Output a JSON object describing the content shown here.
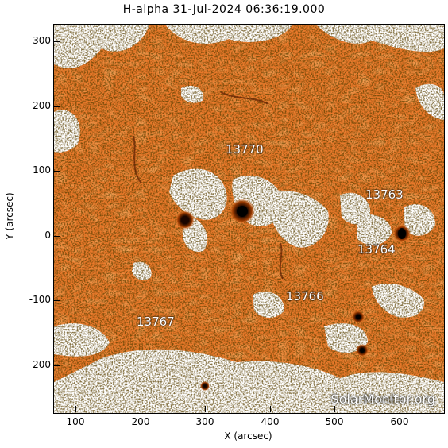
{
  "title": "H-alpha 31-Jul-2024 06:36:19.000",
  "axes": {
    "xlabel": "X (arcsec)",
    "ylabel": "Y (arcsec)",
    "xticks": [
      "100",
      "200",
      "300",
      "400",
      "500",
      "600"
    ],
    "yticks": [
      "300",
      "200",
      "100",
      "0",
      "-100",
      "-200"
    ]
  },
  "active_regions": [
    {
      "id": "ar-13770",
      "label": "13770"
    },
    {
      "id": "ar-13763",
      "label": "13763"
    },
    {
      "id": "ar-13764",
      "label": "13764"
    },
    {
      "id": "ar-13766",
      "label": "13766"
    },
    {
      "id": "ar-13767",
      "label": "13767"
    }
  ],
  "watermark": "SolarMonitor.org",
  "colors": {
    "background_orange": "#e8782a",
    "plage_white": "#ffffff",
    "sunspot_dark": "#1a0a00"
  }
}
